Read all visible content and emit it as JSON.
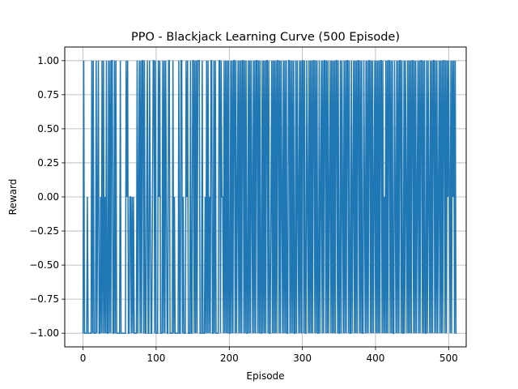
{
  "chart_data": {
    "type": "line",
    "title": "PPO - Blackjack Learning Curve (500 Episode)",
    "xlabel": "Episode",
    "ylabel": "Reward",
    "xlim": [
      -25,
      524
    ],
    "ylim": [
      -1.1,
      1.1
    ],
    "xticks": [
      0,
      100,
      200,
      300,
      400,
      500
    ],
    "xtick_labels": [
      "0",
      "100",
      "200",
      "300",
      "400",
      "500"
    ],
    "yticks": [
      -1.0,
      -0.75,
      -0.5,
      -0.25,
      0.0,
      0.25,
      0.5,
      0.75,
      1.0
    ],
    "ytick_labels": [
      "−1.00",
      "−0.75",
      "−0.50",
      "−0.25",
      "0.00",
      "0.25",
      "0.50",
      "0.75",
      "1.00"
    ],
    "grid": true,
    "series": [
      {
        "color": "#1f77b4",
        "x_start": 0,
        "x_step": 1,
        "values": [
          -1,
          1,
          -1,
          -1,
          -1,
          -1,
          0,
          -1,
          -1,
          -1,
          -1,
          -1,
          1,
          -1,
          1,
          -1,
          -1,
          -1,
          1,
          -1,
          0,
          1,
          -1,
          -1,
          0,
          -1,
          1,
          -1,
          1,
          -1,
          0,
          -1,
          1,
          -1,
          -1,
          1,
          -1,
          1,
          -1,
          1,
          1,
          -1,
          -1,
          1,
          -1,
          1,
          -1,
          -1,
          -1,
          -1,
          -1,
          1,
          -1,
          -1,
          -1,
          -1,
          -1,
          -1,
          -1,
          1,
          0,
          1,
          -1,
          -1,
          0,
          0,
          -1,
          0,
          -1,
          0,
          -1,
          -1,
          -1,
          -1,
          1,
          -1,
          0,
          1,
          -1,
          1,
          -1,
          1,
          1,
          -1,
          1,
          -1,
          -1,
          0,
          1,
          -1,
          -1,
          1,
          0,
          -1,
          -1,
          0,
          1,
          1,
          -1,
          1,
          -1,
          -1,
          -1,
          1,
          0,
          1,
          -1,
          -1,
          -1,
          1,
          -1,
          1,
          -1,
          1,
          0,
          -1,
          -1,
          1,
          1,
          -1,
          -1,
          -1,
          -1,
          1,
          -1,
          0,
          -1,
          -1,
          -1,
          -1,
          -1,
          1,
          -1,
          -1,
          1,
          1,
          -1,
          0,
          -1,
          -1,
          -1,
          1,
          0,
          1,
          -1,
          -1,
          -1,
          1,
          -1,
          -1,
          1,
          1,
          -1,
          1,
          -1,
          1,
          -1,
          1,
          1,
          1,
          -1,
          -1,
          -1,
          1,
          -1,
          -1,
          -1,
          0,
          -1,
          1,
          -1,
          1,
          -1,
          0,
          -1,
          1,
          1,
          -1,
          -1,
          1,
          -1,
          1,
          -1,
          -1,
          -1,
          -1,
          1,
          1,
          -1,
          1,
          0,
          0,
          -1,
          1,
          -1,
          1,
          -1,
          1,
          -1,
          1,
          -1,
          -1,
          1,
          -1,
          1,
          -1,
          1,
          1,
          -1,
          1,
          -1,
          0,
          1,
          -1,
          1,
          -1,
          1,
          -1,
          1,
          1,
          -1,
          1,
          -1,
          1,
          -1,
          -1,
          1,
          -1,
          1,
          -1,
          1,
          0,
          -1,
          1,
          -1,
          1,
          -1,
          1,
          1,
          -1,
          1,
          -1,
          1,
          -1,
          -1,
          1,
          -1,
          1,
          -1,
          1,
          -1,
          1,
          1,
          -1,
          1,
          -1,
          -1,
          0,
          1,
          -1,
          1,
          -1,
          1,
          -1,
          1,
          -1,
          1,
          1,
          -1,
          1,
          -1,
          1,
          0,
          -1,
          1,
          -1,
          1,
          -1,
          1,
          -1,
          -1,
          1,
          1,
          -1,
          1,
          -1,
          1,
          -1,
          1,
          -1,
          -1,
          1,
          -1,
          1,
          0,
          -1,
          1,
          -1,
          1,
          -1,
          1,
          1,
          -1,
          1,
          -1,
          -1,
          1,
          0,
          -1,
          1,
          -1,
          1,
          -1,
          1,
          -1,
          1,
          1,
          -1,
          1,
          -1,
          1,
          -1,
          -1,
          1,
          -1,
          0,
          1,
          -1,
          1,
          -1,
          1,
          1,
          -1,
          1,
          -1,
          1,
          -1,
          0,
          1,
          -1,
          1,
          -1,
          1,
          -1,
          1,
          -1,
          1,
          1,
          -1,
          1,
          -1,
          -1,
          1,
          -1,
          1,
          0,
          -1,
          1,
          -1,
          1,
          -1,
          1,
          1,
          -1,
          1,
          -1,
          -1,
          1,
          -1,
          0,
          1,
          -1,
          1,
          -1,
          1,
          -1,
          1,
          1,
          -1,
          1,
          -1,
          1,
          -1,
          -1,
          1,
          0,
          -1,
          1,
          -1,
          1,
          -1,
          1,
          1,
          -1,
          1,
          -1,
          1,
          -1,
          0,
          1,
          -1,
          1,
          -1,
          1,
          -1,
          1,
          -1,
          1,
          1,
          -1,
          1,
          -1,
          0,
          -1,
          1,
          -1,
          1,
          -1,
          1,
          1,
          -1,
          1,
          -1,
          1,
          -1,
          -1,
          1,
          0,
          -1,
          1,
          -1,
          1,
          -1,
          1,
          1,
          -1,
          1,
          -1,
          -1,
          1,
          -1,
          1,
          0,
          -1,
          1,
          -1,
          1,
          -1,
          1,
          -1,
          1,
          1,
          -1,
          1,
          -1,
          1,
          -1,
          0,
          1,
          -1,
          1,
          -1,
          1,
          1,
          -1,
          1,
          -1,
          1,
          -1,
          -1,
          1,
          -1,
          1,
          0,
          -1,
          1,
          -1,
          1,
          -1,
          1,
          1,
          -1,
          1,
          -1,
          1,
          -1,
          0,
          1,
          -1,
          1,
          -1,
          1,
          -1,
          1,
          1,
          -1,
          1,
          -1,
          1,
          0,
          1,
          0,
          -1,
          1,
          -1,
          1,
          0,
          1,
          -1,
          1,
          -1,
          -1
        ]
      }
    ]
  }
}
